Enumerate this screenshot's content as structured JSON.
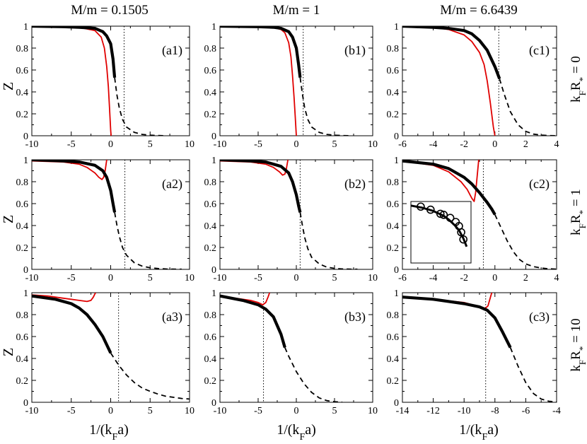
{
  "figure": {
    "column_titles": [
      "M/m = 0.1505",
      "M/m = 1",
      "M/m = 6.6439"
    ],
    "row_titles": [
      "kF R* = 0",
      "kF R* = 1",
      "kF R* = 10"
    ],
    "ylabel": "Z",
    "xlabel": "1/(kF a)"
  },
  "chart_data": [
    {
      "type": "line",
      "panel": "a1",
      "row": 0,
      "col": 0,
      "label": "(a1)",
      "xlim": [
        -10,
        10
      ],
      "ylim": [
        0,
        1
      ],
      "xticks": [
        -10,
        -5,
        0,
        5,
        10
      ],
      "yticks": [
        0,
        0.2,
        0.4,
        0.6,
        0.8,
        1
      ],
      "vline": 1.7,
      "series": [
        {
          "name": "red",
          "x": [
            -10,
            -6,
            -4,
            -2,
            -1.2,
            -0.8,
            -0.5,
            -0.3,
            -0.15,
            0,
            0.05
          ],
          "values": [
            1,
            0.995,
            0.99,
            0.96,
            0.9,
            0.8,
            0.63,
            0.45,
            0.26,
            0.05,
            0
          ]
        },
        {
          "name": "thick",
          "x": [
            -10,
            -6,
            -4,
            -2,
            -1,
            -0.5,
            0,
            0.3,
            0.5
          ],
          "values": [
            1,
            0.995,
            0.99,
            0.98,
            0.95,
            0.91,
            0.84,
            0.7,
            0.53
          ]
        },
        {
          "name": "dashed",
          "x": [
            0.5,
            0.8,
            1.1,
            1.5,
            2,
            3,
            4,
            5,
            6,
            7
          ],
          "values": [
            0.53,
            0.37,
            0.25,
            0.15,
            0.08,
            0.03,
            0.012,
            0.005,
            0.002,
            0
          ]
        }
      ]
    },
    {
      "type": "line",
      "panel": "b1",
      "row": 0,
      "col": 1,
      "label": "(b1)",
      "xlim": [
        -10,
        10
      ],
      "ylim": [
        0,
        1
      ],
      "xticks": [
        -10,
        -5,
        0,
        5,
        10
      ],
      "yticks": [
        0,
        0.2,
        0.4,
        0.6,
        0.8,
        1
      ],
      "vline": 0.9,
      "series": [
        {
          "name": "red",
          "x": [
            -10,
            -5,
            -3,
            -2,
            -1.5,
            -1,
            -0.7,
            -0.5,
            -0.3,
            -0.15,
            0
          ],
          "values": [
            1,
            0.995,
            0.99,
            0.97,
            0.94,
            0.85,
            0.72,
            0.55,
            0.35,
            0.18,
            0
          ]
        },
        {
          "name": "thick",
          "x": [
            -10,
            -5,
            -3,
            -2,
            -1,
            -0.5,
            0,
            0.3,
            0.5
          ],
          "values": [
            1,
            0.995,
            0.99,
            0.98,
            0.95,
            0.9,
            0.8,
            0.65,
            0.53
          ]
        },
        {
          "name": "dashed",
          "x": [
            0.5,
            0.8,
            1.1,
            1.5,
            2,
            3,
            4,
            5,
            6,
            7
          ],
          "values": [
            0.53,
            0.38,
            0.25,
            0.15,
            0.08,
            0.03,
            0.012,
            0.005,
            0.002,
            0
          ]
        }
      ]
    },
    {
      "type": "line",
      "panel": "c1",
      "row": 0,
      "col": 2,
      "label": "(c1)",
      "xlim": [
        -6,
        4
      ],
      "ylim": [
        0,
        1
      ],
      "xticks": [
        -6,
        -4,
        -2,
        0,
        2,
        4
      ],
      "yticks": [
        0,
        0.2,
        0.4,
        0.6,
        0.8,
        1
      ],
      "vline": 0.25,
      "series": [
        {
          "name": "red",
          "x": [
            -6,
            -4,
            -3,
            -2,
            -1.5,
            -1,
            -0.7,
            -0.5,
            -0.3,
            -0.1,
            0
          ],
          "values": [
            1,
            0.99,
            0.97,
            0.92,
            0.86,
            0.76,
            0.65,
            0.5,
            0.3,
            0.08,
            0
          ]
        },
        {
          "name": "thick",
          "x": [
            -6,
            -4,
            -3,
            -2,
            -1.5,
            -1,
            -0.5,
            0,
            0.3
          ],
          "values": [
            1,
            0.99,
            0.98,
            0.96,
            0.93,
            0.87,
            0.78,
            0.63,
            0.52
          ]
        },
        {
          "name": "dashed",
          "x": [
            0.3,
            0.6,
            1,
            1.5,
            2,
            2.5,
            3,
            3.5,
            4
          ],
          "values": [
            0.52,
            0.38,
            0.22,
            0.1,
            0.04,
            0.015,
            0.006,
            0.002,
            0
          ]
        }
      ]
    },
    {
      "type": "line",
      "panel": "a2",
      "row": 1,
      "col": 0,
      "label": "(a2)",
      "xlim": [
        -10,
        10
      ],
      "ylim": [
        0,
        1
      ],
      "xticks": [
        -10,
        -5,
        0,
        5,
        10
      ],
      "yticks": [
        0,
        0.2,
        0.4,
        0.6,
        0.8,
        1
      ],
      "vline": 1.8,
      "series": [
        {
          "name": "red",
          "x": [
            -10,
            -6,
            -4,
            -3,
            -2,
            -1.5,
            -1.1,
            -0.9,
            -0.7,
            -0.5
          ],
          "values": [
            0.99,
            0.98,
            0.96,
            0.93,
            0.88,
            0.84,
            0.82,
            0.84,
            0.9,
            1
          ]
        },
        {
          "name": "thick",
          "x": [
            -10,
            -6,
            -4,
            -2,
            -1,
            -0.5,
            0,
            0.3,
            0.5
          ],
          "values": [
            1,
            0.99,
            0.98,
            0.95,
            0.9,
            0.84,
            0.72,
            0.6,
            0.52
          ]
        },
        {
          "name": "dashed",
          "x": [
            0.5,
            0.8,
            1.1,
            1.5,
            2,
            3,
            4,
            5,
            6,
            7,
            8,
            9
          ],
          "values": [
            0.52,
            0.4,
            0.3,
            0.2,
            0.13,
            0.06,
            0.03,
            0.015,
            0.008,
            0.004,
            0.002,
            0.001
          ]
        }
      ]
    },
    {
      "type": "line",
      "panel": "b2",
      "row": 1,
      "col": 1,
      "label": "(b2)",
      "xlim": [
        -10,
        10
      ],
      "ylim": [
        0,
        1
      ],
      "xticks": [
        -10,
        -5,
        0,
        5,
        10
      ],
      "yticks": [
        0,
        0.2,
        0.4,
        0.6,
        0.8,
        1
      ],
      "vline": 0.5,
      "series": [
        {
          "name": "red",
          "x": [
            -10,
            -6,
            -4,
            -3,
            -2.2,
            -1.8,
            -1.5,
            -1.3,
            -1.1
          ],
          "values": [
            0.99,
            0.98,
            0.96,
            0.93,
            0.89,
            0.86,
            0.87,
            0.92,
            1
          ]
        },
        {
          "name": "thick",
          "x": [
            -10,
            -6,
            -4,
            -2,
            -1,
            -0.5,
            0,
            0.3,
            0.5
          ],
          "values": [
            1,
            0.99,
            0.98,
            0.94,
            0.88,
            0.8,
            0.68,
            0.58,
            0.52
          ]
        },
        {
          "name": "dashed",
          "x": [
            0.5,
            0.8,
            1.1,
            1.5,
            2,
            3,
            4,
            5,
            6,
            7,
            8
          ],
          "values": [
            0.52,
            0.4,
            0.29,
            0.19,
            0.11,
            0.05,
            0.02,
            0.009,
            0.004,
            0.002,
            0.001
          ]
        }
      ]
    },
    {
      "type": "line",
      "panel": "c2",
      "row": 1,
      "col": 2,
      "label": "(c2)",
      "xlim": [
        -6,
        4
      ],
      "ylim": [
        0,
        1
      ],
      "xticks": [
        -6,
        -4,
        -2,
        0,
        2,
        4
      ],
      "yticks": [
        0,
        0.2,
        0.4,
        0.6,
        0.8,
        1
      ],
      "vline": -0.75,
      "series": [
        {
          "name": "red",
          "x": [
            -6,
            -4,
            -3,
            -2.2,
            -1.8,
            -1.5,
            -1.35,
            -1.25,
            -1.15,
            -1.05
          ],
          "values": [
            0.99,
            0.95,
            0.89,
            0.8,
            0.73,
            0.65,
            0.62,
            0.7,
            0.85,
            1
          ]
        },
        {
          "name": "thick",
          "x": [
            -6,
            -4,
            -3,
            -2,
            -1.5,
            -1,
            -0.5,
            -0.2,
            0
          ],
          "values": [
            0.99,
            0.96,
            0.92,
            0.84,
            0.78,
            0.7,
            0.61,
            0.55,
            0.5
          ]
        },
        {
          "name": "dashed",
          "x": [
            0,
            0.4,
            0.8,
            1.2,
            1.6,
            2,
            2.5,
            3,
            3.5,
            4
          ],
          "values": [
            0.5,
            0.38,
            0.26,
            0.16,
            0.09,
            0.05,
            0.025,
            0.012,
            0.005,
            0.002
          ]
        }
      ],
      "inset": {
        "xlim": [
          -6,
          -0.5
        ],
        "ylim": [
          0.4,
          1
        ],
        "curve": {
          "x": [
            -6,
            -5,
            -4,
            -3,
            -2.5,
            -2,
            -1.6,
            -1.2,
            -0.9
          ],
          "y": [
            0.96,
            0.94,
            0.91,
            0.86,
            0.82,
            0.77,
            0.72,
            0.64,
            0.56
          ]
        },
        "points": {
          "x": [
            -5.1,
            -4.2,
            -3.3,
            -3.0,
            -2.4,
            -1.9,
            -1.6,
            -1.4,
            -1.2
          ],
          "y": [
            0.95,
            0.92,
            0.88,
            0.87,
            0.84,
            0.8,
            0.76,
            0.7,
            0.63
          ]
        }
      }
    },
    {
      "type": "line",
      "panel": "a3",
      "row": 2,
      "col": 0,
      "label": "(a3)",
      "xlim": [
        -10,
        10
      ],
      "ylim": [
        0,
        1
      ],
      "xticks": [
        -10,
        -5,
        0,
        5,
        10
      ],
      "yticks": [
        0,
        0.2,
        0.4,
        0.6,
        0.8,
        1
      ],
      "vline": 1,
      "series": [
        {
          "name": "red",
          "x": [
            -10,
            -8,
            -6,
            -4,
            -3,
            -2.5,
            -2.2,
            -2.0,
            -1.9
          ],
          "values": [
            0.98,
            0.97,
            0.95,
            0.93,
            0.92,
            0.93,
            0.96,
            0.99,
            1
          ]
        },
        {
          "name": "thick",
          "x": [
            -10,
            -7,
            -5,
            -4,
            -3,
            -2,
            -1,
            0
          ],
          "values": [
            0.97,
            0.94,
            0.9,
            0.86,
            0.8,
            0.71,
            0.6,
            0.45
          ]
        },
        {
          "name": "dashed",
          "x": [
            0,
            1,
            2,
            3,
            4,
            5,
            6,
            7,
            8,
            9,
            10
          ],
          "values": [
            0.45,
            0.34,
            0.25,
            0.18,
            0.13,
            0.1,
            0.075,
            0.055,
            0.045,
            0.035,
            0.03
          ]
        }
      ]
    },
    {
      "type": "line",
      "panel": "b3",
      "row": 2,
      "col": 1,
      "label": "(b3)",
      "xlim": [
        -10,
        10
      ],
      "ylim": [
        0,
        1
      ],
      "xticks": [
        -10,
        -5,
        0,
        5,
        10
      ],
      "yticks": [
        0,
        0.2,
        0.4,
        0.6,
        0.8,
        1
      ],
      "vline": -4.3,
      "series": [
        {
          "name": "red",
          "x": [
            -10,
            -8,
            -6,
            -5,
            -4.4,
            -4.0,
            -3.7,
            -3.5
          ],
          "values": [
            0.97,
            0.95,
            0.93,
            0.91,
            0.89,
            0.91,
            0.96,
            1
          ]
        },
        {
          "name": "thick",
          "x": [
            -10,
            -7,
            -5,
            -4,
            -3,
            -2,
            -1.5
          ],
          "values": [
            0.97,
            0.93,
            0.89,
            0.85,
            0.78,
            0.62,
            0.5
          ]
        },
        {
          "name": "dashed",
          "x": [
            -1.5,
            -1,
            0,
            1,
            2,
            3,
            4,
            5,
            6
          ],
          "values": [
            0.5,
            0.42,
            0.28,
            0.17,
            0.09,
            0.04,
            0.015,
            0.005,
            0.001
          ]
        }
      ]
    },
    {
      "type": "line",
      "panel": "c3",
      "row": 2,
      "col": 2,
      "label": "(c3)",
      "xlim": [
        -14,
        -4
      ],
      "ylim": [
        0,
        1
      ],
      "xticks": [
        -14,
        -12,
        -10,
        -8,
        -6,
        -4
      ],
      "yticks": [
        0,
        0.2,
        0.4,
        0.6,
        0.8,
        1
      ],
      "vline": -8.6,
      "series": [
        {
          "name": "red",
          "x": [
            -14,
            -12,
            -10,
            -9.2,
            -8.8,
            -8.6,
            -8.45,
            -8.35,
            -8.25,
            -8.2
          ],
          "values": [
            0.96,
            0.94,
            0.91,
            0.88,
            0.86,
            0.86,
            0.88,
            0.93,
            0.98,
            1
          ]
        },
        {
          "name": "thick",
          "x": [
            -14,
            -12,
            -10,
            -9,
            -8.5,
            -8,
            -7.5,
            -7
          ],
          "values": [
            0.96,
            0.94,
            0.9,
            0.87,
            0.84,
            0.77,
            0.64,
            0.5
          ]
        },
        {
          "name": "dashed",
          "x": [
            -7,
            -6.5,
            -6,
            -5.5,
            -5,
            -4.5,
            -4
          ],
          "values": [
            0.5,
            0.33,
            0.18,
            0.08,
            0.03,
            0.01,
            0.003
          ]
        }
      ]
    }
  ]
}
